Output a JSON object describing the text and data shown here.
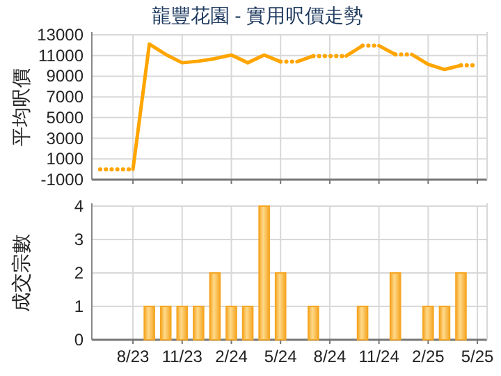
{
  "chart_data": [
    {
      "type": "line",
      "title": "龍豐花園 - 實用呎價走勢",
      "ylabel": "平均呎價",
      "color": "#ffa500",
      "xlim": [
        "2023-05-16",
        "2025-05-19"
      ],
      "xticks": [
        {
          "value": "2023-08",
          "label": null
        },
        {
          "value": "2023-11",
          "label": null
        },
        {
          "value": "2024-02",
          "label": null
        },
        {
          "value": "2024-05",
          "label": null
        },
        {
          "value": "2024-08",
          "label": null
        },
        {
          "value": "2024-11",
          "label": null
        },
        {
          "value": "2025-02",
          "label": null
        },
        {
          "value": "2025-05",
          "label": null
        }
      ],
      "ylim": [
        -1000,
        13000
      ],
      "yticks": [
        -1000,
        1000,
        3000,
        5000,
        7000,
        9000,
        11000,
        13000
      ],
      "grid": true,
      "tick_labels": "y",
      "series": [
        {
          "line_style": "dotted",
          "x": [
            "2023-06",
            "2023-07",
            "2023-08"
          ],
          "values": [
            0,
            0,
            0
          ]
        },
        {
          "line_style": "solid",
          "x": [
            "2023-08",
            "2023-09",
            "2023-10",
            "2023-11",
            "2023-12",
            "2024-01",
            "2024-02",
            "2024-03",
            "2024-04",
            "2024-05"
          ],
          "values": [
            0,
            12100,
            11100,
            10300,
            10450,
            10700,
            11050,
            10300,
            11050,
            10400
          ]
        },
        {
          "line_style": "dotted",
          "x": [
            "2024-05",
            "2024-06"
          ],
          "values": [
            10400,
            10400
          ]
        },
        {
          "line_style": "solid",
          "x": [
            "2024-06",
            "2024-07"
          ],
          "values": [
            10400,
            10950
          ]
        },
        {
          "line_style": "dotted",
          "x": [
            "2024-07",
            "2024-08",
            "2024-09"
          ],
          "values": [
            10950,
            10950,
            10950
          ]
        },
        {
          "line_style": "solid",
          "x": [
            "2024-09",
            "2024-10"
          ],
          "values": [
            10950,
            11950
          ]
        },
        {
          "line_style": "dotted",
          "x": [
            "2024-10",
            "2024-11"
          ],
          "values": [
            11950,
            11950
          ]
        },
        {
          "line_style": "solid",
          "x": [
            "2024-11",
            "2024-12"
          ],
          "values": [
            11950,
            11100
          ]
        },
        {
          "line_style": "dotted",
          "x": [
            "2024-12",
            "2025-01"
          ],
          "values": [
            11100,
            11100
          ]
        },
        {
          "line_style": "solid",
          "x": [
            "2025-01",
            "2025-02",
            "2025-03",
            "2025-04"
          ],
          "values": [
            11100,
            10150,
            9650,
            10050
          ]
        },
        {
          "line_style": "dotted",
          "x": [
            "2025-04",
            "2025-05"
          ],
          "values": [
            10050,
            10050
          ]
        }
      ]
    },
    {
      "type": "bar",
      "ylabel": "成交宗數",
      "color": "#f5a623",
      "xlim": [
        "2023-05-16",
        "2025-05-19"
      ],
      "xticks": [
        {
          "value": "2023-08",
          "label": "8/23"
        },
        {
          "value": "2023-11",
          "label": "11/23"
        },
        {
          "value": "2024-02",
          "label": "2/24"
        },
        {
          "value": "2024-05",
          "label": "5/24"
        },
        {
          "value": "2024-08",
          "label": "8/24"
        },
        {
          "value": "2024-11",
          "label": "11/24"
        },
        {
          "value": "2025-02",
          "label": "2/25"
        },
        {
          "value": "2025-05",
          "label": "5/25"
        }
      ],
      "ylim": [
        0,
        4
      ],
      "yticks": [
        0,
        1,
        2,
        3,
        4
      ],
      "grid": true,
      "x": [
        "2023-09",
        "2023-10",
        "2023-11",
        "2023-12",
        "2024-01",
        "2024-02",
        "2024-03",
        "2024-04",
        "2024-05",
        "2024-07",
        "2024-10",
        "2024-12",
        "2025-02",
        "2025-03",
        "2025-04"
      ],
      "values": [
        1,
        1,
        1,
        1,
        2,
        1,
        1,
        4,
        2,
        1,
        1,
        2,
        1,
        1,
        2
      ]
    }
  ]
}
